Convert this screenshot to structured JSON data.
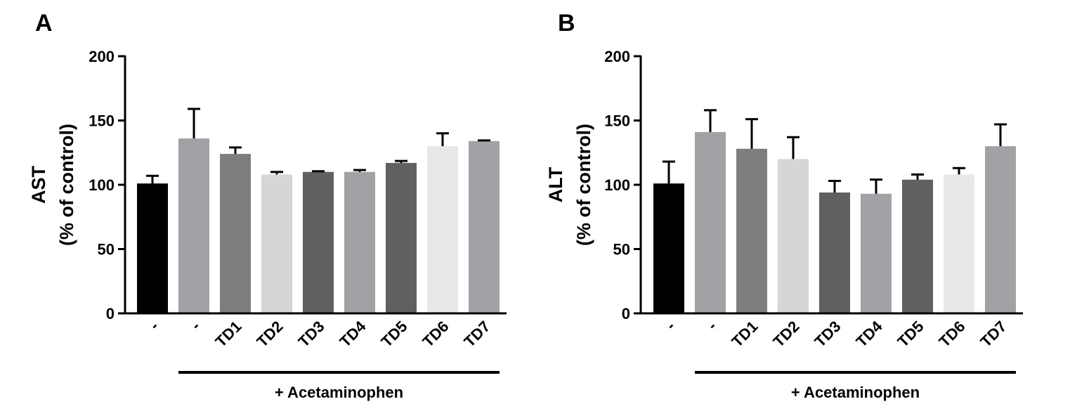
{
  "chart_data": [
    {
      "panel_label": "A",
      "type": "bar",
      "ylabel_line1": "AST",
      "ylabel_line2": "(% of control)",
      "ylim": [
        0,
        200
      ],
      "yticks": [
        "0",
        "50",
        "100",
        "150",
        "200"
      ],
      "categories": [
        "-",
        "-",
        "TD1",
        "TD2",
        "TD3",
        "TD4",
        "TD5",
        "TD6",
        "TD7"
      ],
      "values": [
        101,
        136,
        124,
        108,
        110,
        110,
        117,
        130,
        134
      ],
      "errors": [
        6,
        23,
        5,
        2,
        0.5,
        1.5,
        1.5,
        10,
        0.5
      ],
      "colors": [
        "#000000",
        "#a2a1a6",
        "#7e7e7e",
        "#d6d6d6",
        "#606060",
        "#a2a1a6",
        "#606060",
        "#e8e8e8",
        "#a2a1a6"
      ],
      "group_label": "+ Acetaminophen",
      "group_start_index": 1
    },
    {
      "panel_label": "B",
      "type": "bar",
      "ylabel_line1": "ALT",
      "ylabel_line2": "(% of control)",
      "ylim": [
        0,
        200
      ],
      "yticks": [
        "0",
        "50",
        "100",
        "150",
        "200"
      ],
      "categories": [
        "-",
        "-",
        "TD1",
        "TD2",
        "TD3",
        "TD4",
        "TD5",
        "TD6",
        "TD7"
      ],
      "values": [
        101,
        141,
        128,
        120,
        94,
        93,
        104,
        108,
        130
      ],
      "errors": [
        17,
        17,
        23,
        17,
        9,
        11,
        4,
        5,
        17
      ],
      "colors": [
        "#000000",
        "#a2a1a6",
        "#7e7e7e",
        "#d6d6d6",
        "#606060",
        "#a2a1a6",
        "#606060",
        "#e8e8e8",
        "#a2a1a6"
      ],
      "group_label": "+ Acetaminophen",
      "group_start_index": 1
    }
  ]
}
